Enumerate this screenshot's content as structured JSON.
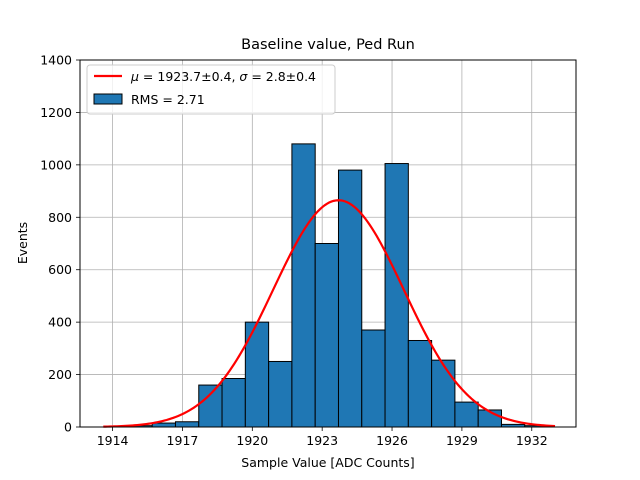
{
  "chart_data": {
    "type": "bar",
    "title": "Baseline value, Ped Run",
    "xlabel": "Sample Value [ADC Counts]",
    "ylabel": "Events",
    "xlim": [
      1912.6,
      1933.9
    ],
    "ylim": [
      0,
      1400
    ],
    "x_ticks": [
      1914,
      1917,
      1920,
      1923,
      1926,
      1929,
      1932
    ],
    "y_ticks": [
      0,
      200,
      400,
      600,
      800,
      1000,
      1200,
      1400
    ],
    "grid": true,
    "legend_position": "top-left",
    "bin_edges": [
      1913.7,
      1914.7,
      1915.7,
      1916.7,
      1917.7,
      1918.7,
      1919.7,
      1920.7,
      1921.7,
      1922.7,
      1923.7,
      1924.7,
      1925.7,
      1926.7,
      1927.7,
      1928.7,
      1929.7,
      1930.7,
      1931.7,
      1932.7
    ],
    "bin_counts": [
      3,
      5,
      15,
      20,
      160,
      185,
      400,
      250,
      1080,
      700,
      980,
      370,
      1005,
      330,
      255,
      95,
      65,
      10,
      5
    ],
    "series": [
      {
        "name": "RMS = 2.71",
        "kind": "histogram",
        "color": "#1f77b4",
        "edgecolor": "#000000"
      },
      {
        "name": "$\\mu = 1923.7 \\pm 0.4, \\sigma = 2.8 \\pm 0.4$",
        "kind": "gaussian-fit",
        "color": "#ff0000",
        "mu": 1923.7,
        "sigma": 2.8,
        "amplitude": 865,
        "x_range": [
          1913.6,
          1933.0
        ]
      }
    ],
    "legend": [
      {
        "label_mu": "μ",
        "text_mu": " = 1923.7±0.4, ",
        "label_sigma": "σ",
        "text_sigma": " = 2.8±0.4",
        "kind": "line",
        "color": "#ff0000"
      },
      {
        "label": "RMS = 2.71",
        "kind": "patch",
        "color": "#1f77b4"
      }
    ]
  }
}
